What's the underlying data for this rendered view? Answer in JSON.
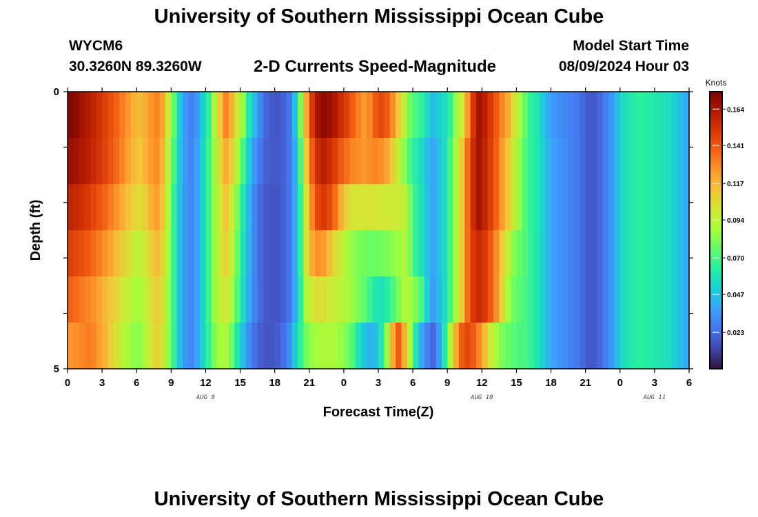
{
  "header": {
    "title": "University of Southern Mississippi Ocean Cube",
    "station": "WYCM6",
    "coords": "30.3260N  89.3260W",
    "subtitle": "2-D Currents Speed-Magnitude",
    "model_start_label": "Model Start Time",
    "model_start_value": "08/09/2024 Hour 03"
  },
  "footer": {
    "title": "University of Southern Mississippi Ocean Cube"
  },
  "chart_data": {
    "type": "heatmap",
    "title": "2-D Currents Speed-Magnitude",
    "xlabel": "Forecast Time(Z)",
    "ylabel": "Depth (ft)",
    "x_unit": "hours from Aug 9 00Z",
    "xlim": [
      0,
      54
    ],
    "ylim": [
      5,
      0
    ],
    "x_tick_values": [
      0,
      3,
      6,
      9,
      12,
      15,
      18,
      21,
      24,
      27,
      30,
      33,
      36,
      39,
      42,
      45,
      48,
      51,
      54
    ],
    "x_tick_labels": [
      "0",
      "3",
      "6",
      "9",
      "12",
      "15",
      "18",
      "21",
      "0",
      "3",
      "6",
      "9",
      "12",
      "15",
      "18",
      "21",
      "0",
      "3",
      "6"
    ],
    "y_tick_labels": [
      "0",
      "5"
    ],
    "date_labels": [
      {
        "text": "AUG 9",
        "x": 12
      },
      {
        "text": "AUG 10",
        "x": 36
      },
      {
        "text": "AUG 11",
        "x": 51
      }
    ],
    "colorbar": {
      "unit": "Knots",
      "min": 0.0,
      "max": 0.175,
      "ticks": [
        "0.164",
        "0.141",
        "0.117",
        "0.094",
        "0.070",
        "0.047",
        "0.023"
      ],
      "colors": [
        "#30123b",
        "#4145ab",
        "#4675ed",
        "#39a2fc",
        "#1bcfd4",
        "#24eca6",
        "#61fc6c",
        "#a4fc3b",
        "#d1e834",
        "#f3c63a",
        "#fe9b2d",
        "#f36315",
        "#d93806",
        "#b11901",
        "#7a0402"
      ]
    },
    "depth_rows": [
      0,
      1,
      2,
      3,
      4,
      5
    ],
    "times": [
      0,
      0.5,
      1,
      1.5,
      2,
      2.5,
      3,
      3.5,
      4,
      4.5,
      5,
      5.5,
      6,
      6.5,
      7,
      7.5,
      8,
      8.5,
      9,
      9.5,
      10,
      10.5,
      11,
      11.5,
      12,
      12.5,
      13,
      13.5,
      14,
      14.5,
      15,
      15.5,
      16,
      16.5,
      17,
      17.5,
      18,
      18.5,
      19,
      19.5,
      20,
      20.5,
      21,
      21.5,
      22,
      22.5,
      23,
      23.5,
      24,
      24.5,
      25,
      25.5,
      26,
      26.5,
      27,
      27.5,
      28,
      28.5,
      29,
      29.5,
      30,
      30.5,
      31,
      31.5,
      32,
      32.5,
      33,
      33.5,
      34,
      34.5,
      35,
      35.5,
      36,
      36.5,
      37,
      37.5,
      38,
      38.5,
      39,
      39.5,
      40,
      40.5,
      41,
      41.5,
      42,
      42.5,
      43,
      43.5,
      44,
      44.5,
      45,
      45.5,
      46,
      46.5,
      47,
      47.5,
      48,
      48.5,
      49,
      49.5,
      50,
      50.5,
      51,
      51.5,
      52,
      52.5,
      53,
      53.5
    ],
    "values": [
      [
        0.173,
        0.17,
        0.166,
        0.162,
        0.158,
        0.153,
        0.148,
        0.143,
        0.138,
        0.132,
        0.126,
        0.119,
        0.115,
        0.12,
        0.126,
        0.13,
        0.122,
        0.1,
        0.075,
        0.05,
        0.035,
        0.028,
        0.035,
        0.05,
        0.065,
        0.09,
        0.112,
        0.13,
        0.118,
        0.1,
        0.085,
        0.06,
        0.045,
        0.03,
        0.022,
        0.018,
        0.017,
        0.02,
        0.025,
        0.045,
        0.08,
        0.12,
        0.15,
        0.165,
        0.17,
        0.168,
        0.162,
        0.155,
        0.148,
        0.14,
        0.132,
        0.125,
        0.13,
        0.14,
        0.145,
        0.14,
        0.128,
        0.112,
        0.095,
        0.078,
        0.07,
        0.065,
        0.055,
        0.045,
        0.05,
        0.055,
        0.065,
        0.085,
        0.1,
        0.125,
        0.15,
        0.165,
        0.16,
        0.15,
        0.14,
        0.13,
        0.12,
        0.105,
        0.09,
        0.075,
        0.065,
        0.06,
        0.05,
        0.04,
        0.035,
        0.032,
        0.03,
        0.028,
        0.026,
        0.022,
        0.018,
        0.018,
        0.022,
        0.028,
        0.035,
        0.045,
        0.055,
        0.06,
        0.063,
        0.064,
        0.063,
        0.062,
        0.06,
        0.058,
        0.055,
        0.05,
        0.045,
        0.04
      ],
      [
        0.168,
        0.166,
        0.163,
        0.16,
        0.156,
        0.152,
        0.147,
        0.142,
        0.136,
        0.13,
        0.123,
        0.116,
        0.112,
        0.118,
        0.124,
        0.128,
        0.118,
        0.095,
        0.07,
        0.048,
        0.035,
        0.03,
        0.038,
        0.052,
        0.068,
        0.085,
        0.105,
        0.12,
        0.11,
        0.09,
        0.07,
        0.05,
        0.035,
        0.025,
        0.02,
        0.018,
        0.018,
        0.02,
        0.025,
        0.04,
        0.07,
        0.11,
        0.14,
        0.155,
        0.16,
        0.155,
        0.148,
        0.14,
        0.135,
        0.13,
        0.128,
        0.126,
        0.128,
        0.13,
        0.128,
        0.122,
        0.11,
        0.095,
        0.082,
        0.07,
        0.062,
        0.055,
        0.045,
        0.038,
        0.045,
        0.055,
        0.07,
        0.09,
        0.11,
        0.135,
        0.155,
        0.165,
        0.158,
        0.148,
        0.138,
        0.125,
        0.112,
        0.098,
        0.085,
        0.072,
        0.065,
        0.06,
        0.052,
        0.043,
        0.037,
        0.034,
        0.031,
        0.029,
        0.026,
        0.022,
        0.018,
        0.018,
        0.022,
        0.028,
        0.035,
        0.045,
        0.055,
        0.06,
        0.063,
        0.064,
        0.063,
        0.062,
        0.06,
        0.058,
        0.055,
        0.05,
        0.045,
        0.04
      ],
      [
        0.158,
        0.156,
        0.153,
        0.15,
        0.146,
        0.142,
        0.137,
        0.132,
        0.127,
        0.12,
        0.114,
        0.108,
        0.105,
        0.11,
        0.118,
        0.124,
        0.114,
        0.09,
        0.066,
        0.046,
        0.034,
        0.03,
        0.038,
        0.052,
        0.068,
        0.085,
        0.1,
        0.112,
        0.1,
        0.08,
        0.06,
        0.043,
        0.03,
        0.022,
        0.018,
        0.017,
        0.017,
        0.02,
        0.025,
        0.038,
        0.065,
        0.1,
        0.13,
        0.145,
        0.15,
        0.145,
        0.135,
        0.12,
        0.108,
        0.102,
        0.101,
        0.101,
        0.101,
        0.101,
        0.1,
        0.1,
        0.099,
        0.098,
        0.095,
        0.08,
        0.066,
        0.058,
        0.047,
        0.038,
        0.045,
        0.055,
        0.07,
        0.09,
        0.11,
        0.135,
        0.155,
        0.165,
        0.158,
        0.148,
        0.138,
        0.125,
        0.112,
        0.098,
        0.085,
        0.072,
        0.065,
        0.06,
        0.052,
        0.043,
        0.037,
        0.034,
        0.031,
        0.029,
        0.026,
        0.022,
        0.018,
        0.018,
        0.022,
        0.028,
        0.035,
        0.045,
        0.055,
        0.06,
        0.063,
        0.064,
        0.063,
        0.062,
        0.06,
        0.058,
        0.055,
        0.05,
        0.045,
        0.04
      ],
      [
        0.148,
        0.146,
        0.143,
        0.14,
        0.136,
        0.132,
        0.127,
        0.122,
        0.116,
        0.11,
        0.104,
        0.098,
        0.095,
        0.1,
        0.108,
        0.115,
        0.108,
        0.088,
        0.066,
        0.046,
        0.034,
        0.03,
        0.038,
        0.052,
        0.068,
        0.085,
        0.1,
        0.108,
        0.096,
        0.076,
        0.058,
        0.042,
        0.03,
        0.022,
        0.018,
        0.017,
        0.017,
        0.02,
        0.025,
        0.038,
        0.065,
        0.1,
        0.12,
        0.128,
        0.125,
        0.115,
        0.105,
        0.098,
        0.09,
        0.084,
        0.08,
        0.078,
        0.077,
        0.077,
        0.078,
        0.08,
        0.083,
        0.086,
        0.09,
        0.08,
        0.066,
        0.058,
        0.047,
        0.038,
        0.045,
        0.055,
        0.07,
        0.09,
        0.11,
        0.135,
        0.15,
        0.155,
        0.15,
        0.14,
        0.128,
        0.112,
        0.096,
        0.083,
        0.076,
        0.072,
        0.066,
        0.06,
        0.052,
        0.043,
        0.037,
        0.034,
        0.031,
        0.029,
        0.026,
        0.022,
        0.018,
        0.018,
        0.022,
        0.028,
        0.035,
        0.045,
        0.055,
        0.06,
        0.063,
        0.064,
        0.063,
        0.062,
        0.06,
        0.058,
        0.055,
        0.05,
        0.045,
        0.04
      ],
      [
        0.138,
        0.136,
        0.133,
        0.13,
        0.127,
        0.122,
        0.117,
        0.112,
        0.106,
        0.1,
        0.095,
        0.09,
        0.088,
        0.095,
        0.103,
        0.11,
        0.104,
        0.086,
        0.066,
        0.046,
        0.034,
        0.03,
        0.038,
        0.052,
        0.068,
        0.085,
        0.095,
        0.1,
        0.09,
        0.072,
        0.055,
        0.04,
        0.029,
        0.022,
        0.018,
        0.017,
        0.017,
        0.02,
        0.025,
        0.038,
        0.062,
        0.09,
        0.1,
        0.104,
        0.103,
        0.1,
        0.096,
        0.093,
        0.09,
        0.086,
        0.08,
        0.075,
        0.068,
        0.06,
        0.058,
        0.062,
        0.07,
        0.08,
        0.09,
        0.088,
        0.08,
        0.07,
        0.052,
        0.036,
        0.043,
        0.055,
        0.07,
        0.09,
        0.11,
        0.135,
        0.15,
        0.155,
        0.15,
        0.14,
        0.128,
        0.108,
        0.088,
        0.078,
        0.073,
        0.07,
        0.066,
        0.06,
        0.052,
        0.043,
        0.037,
        0.034,
        0.031,
        0.029,
        0.026,
        0.022,
        0.018,
        0.018,
        0.022,
        0.028,
        0.035,
        0.045,
        0.055,
        0.06,
        0.063,
        0.064,
        0.063,
        0.062,
        0.06,
        0.058,
        0.055,
        0.05,
        0.045,
        0.04
      ],
      [
        0.126,
        0.128,
        0.13,
        0.132,
        0.13,
        0.125,
        0.118,
        0.11,
        0.102,
        0.094,
        0.088,
        0.084,
        0.083,
        0.09,
        0.1,
        0.108,
        0.102,
        0.085,
        0.066,
        0.046,
        0.034,
        0.03,
        0.038,
        0.052,
        0.066,
        0.08,
        0.088,
        0.09,
        0.078,
        0.06,
        0.045,
        0.032,
        0.024,
        0.019,
        0.017,
        0.017,
        0.019,
        0.024,
        0.032,
        0.048,
        0.065,
        0.078,
        0.085,
        0.088,
        0.09,
        0.09,
        0.088,
        0.085,
        0.08,
        0.072,
        0.06,
        0.048,
        0.042,
        0.045,
        0.06,
        0.085,
        0.12,
        0.14,
        0.12,
        0.09,
        0.06,
        0.04,
        0.028,
        0.022,
        0.035,
        0.06,
        0.09,
        0.12,
        0.14,
        0.145,
        0.14,
        0.13,
        0.115,
        0.1,
        0.088,
        0.08,
        0.076,
        0.073,
        0.071,
        0.07,
        0.066,
        0.06,
        0.052,
        0.043,
        0.037,
        0.034,
        0.031,
        0.029,
        0.026,
        0.022,
        0.018,
        0.018,
        0.022,
        0.028,
        0.035,
        0.045,
        0.055,
        0.06,
        0.063,
        0.064,
        0.063,
        0.062,
        0.06,
        0.058,
        0.055,
        0.05,
        0.045,
        0.04
      ]
    ]
  }
}
